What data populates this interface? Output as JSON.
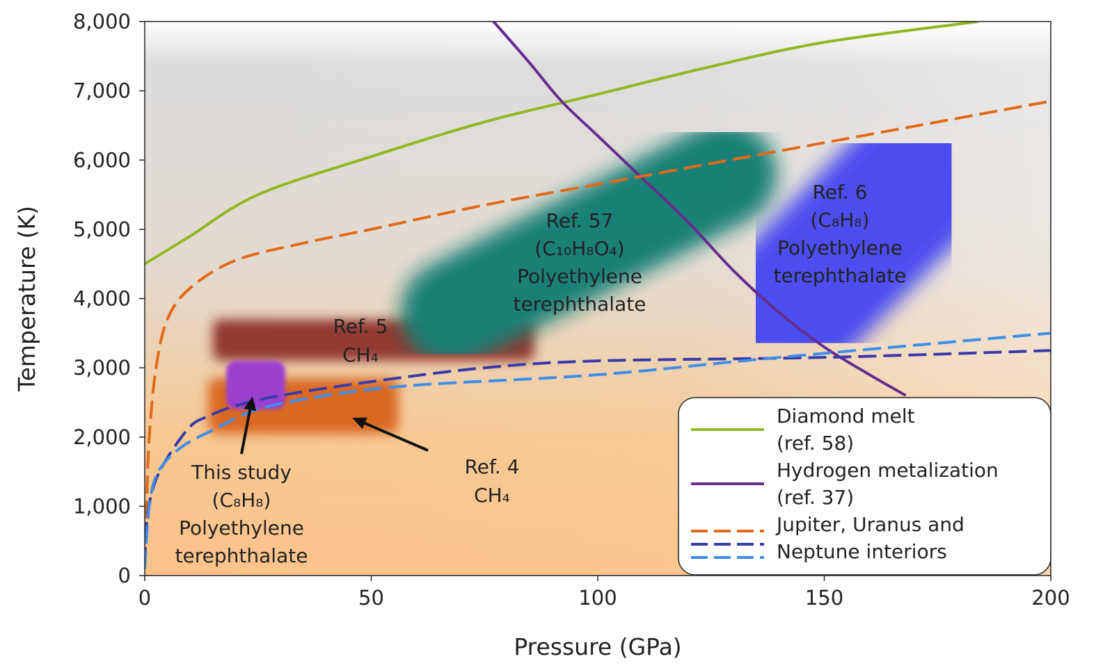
{
  "chart_data": {
    "type": "line",
    "title": "",
    "xlabel": "Pressure (GPa)",
    "ylabel": "Temperature (K)",
    "xlim": [
      0,
      200
    ],
    "ylim": [
      0,
      8000
    ],
    "x_ticks": [
      0,
      50,
      100,
      150,
      200
    ],
    "x_tick_labels": [
      "0",
      "50",
      "100",
      "150",
      "200"
    ],
    "y_ticks": [
      0,
      1000,
      2000,
      3000,
      4000,
      5000,
      6000,
      7000,
      8000
    ],
    "y_tick_labels": [
      "0",
      "1,000",
      "2,000",
      "3,000",
      "4,000",
      "5,000",
      "6,000",
      "7,000",
      "8,000"
    ],
    "grid": false,
    "legend_position": "bottom-right",
    "series": [
      {
        "name": "Diamond melt (ref. 58)",
        "color": "#8fb822",
        "style": "solid",
        "points": [
          [
            0,
            4500
          ],
          [
            10,
            4900
          ],
          [
            25,
            5500
          ],
          [
            50,
            6050
          ],
          [
            75,
            6550
          ],
          [
            100,
            6950
          ],
          [
            125,
            7350
          ],
          [
            150,
            7700
          ],
          [
            184,
            8000
          ]
        ]
      },
      {
        "name": "Hydrogen metalization (ref. 37)",
        "color": "#652d8e",
        "style": "solid",
        "points": [
          [
            77,
            8000
          ],
          [
            85,
            7400
          ],
          [
            92,
            6850
          ],
          [
            100,
            6350
          ],
          [
            108,
            5850
          ],
          [
            120,
            5100
          ],
          [
            130,
            4400
          ],
          [
            140,
            3800
          ],
          [
            150,
            3300
          ],
          [
            160,
            2900
          ],
          [
            168,
            2600
          ]
        ]
      },
      {
        "name": "Jupiter interior",
        "color": "#e06a1a",
        "style": "dashed",
        "points": [
          [
            0,
            100
          ],
          [
            0.4,
            1000
          ],
          [
            1,
            2000
          ],
          [
            2.5,
            3000
          ],
          [
            5,
            3700
          ],
          [
            10,
            4150
          ],
          [
            20,
            4550
          ],
          [
            35,
            4800
          ],
          [
            50,
            5000
          ],
          [
            75,
            5350
          ],
          [
            100,
            5650
          ],
          [
            125,
            5950
          ],
          [
            150,
            6250
          ],
          [
            175,
            6550
          ],
          [
            200,
            6850
          ]
        ]
      },
      {
        "name": "Uranus interior",
        "color": "#3a3aa8",
        "style": "dashed",
        "points": [
          [
            0,
            150
          ],
          [
            0.5,
            800
          ],
          [
            2,
            1300
          ],
          [
            5,
            1700
          ],
          [
            10,
            2150
          ],
          [
            14,
            2300
          ],
          [
            20,
            2450
          ],
          [
            30,
            2600
          ],
          [
            50,
            2800
          ],
          [
            75,
            3000
          ],
          [
            100,
            3100
          ],
          [
            150,
            3150
          ],
          [
            200,
            3250
          ]
        ]
      },
      {
        "name": "Neptune interior",
        "color": "#3d8ee8",
        "style": "dashed",
        "points": [
          [
            0,
            100
          ],
          [
            1,
            1000
          ],
          [
            3,
            1500
          ],
          [
            8,
            1850
          ],
          [
            15,
            2100
          ],
          [
            25,
            2400
          ],
          [
            40,
            2600
          ],
          [
            60,
            2750
          ],
          [
            100,
            2900
          ],
          [
            140,
            3150
          ],
          [
            200,
            3500
          ]
        ]
      }
    ],
    "regions": [
      {
        "label_lines": [
          "Ref. 5",
          "CH₄"
        ],
        "color": "#8c2e26",
        "x": [
          15,
          86
        ],
        "y": [
          3100,
          3700
        ]
      },
      {
        "label_lines": [
          "Ref. 4",
          "CH₄"
        ],
        "color": "#d8641c",
        "x": [
          14,
          56
        ],
        "y": [
          2050,
          2850
        ]
      },
      {
        "label_lines": [
          "Ref. 57",
          "(C₁₀H₈O₄)",
          "Polyethylene",
          "terephthalate"
        ],
        "color": "#157f75"
      },
      {
        "label_lines": [
          "Ref. 6",
          "(C₈H₈)",
          "Polyethylene",
          "terephthalate"
        ],
        "color": "#4a4cf0"
      },
      {
        "label_lines": [
          "This study",
          "(C₈H₈)",
          "Polyethylene",
          "terephthalate"
        ],
        "color": "#9a3fd0",
        "x": [
          18,
          31
        ],
        "y": [
          2400,
          3100
        ]
      }
    ],
    "legend_entries": [
      {
        "lines": [
          "Diamond melt",
          "(ref. 58)"
        ],
        "colors": [
          "#8fb822"
        ],
        "style": "solid"
      },
      {
        "lines": [
          "Hydrogen metalization",
          "(ref. 37)"
        ],
        "colors": [
          "#652d8e"
        ],
        "style": "solid"
      },
      {
        "lines": [
          "Jupiter, Uranus and",
          "Neptune interiors"
        ],
        "colors": [
          "#e06a1a",
          "#3a3aa8",
          "#3d8ee8"
        ],
        "style": "dashed"
      }
    ]
  }
}
